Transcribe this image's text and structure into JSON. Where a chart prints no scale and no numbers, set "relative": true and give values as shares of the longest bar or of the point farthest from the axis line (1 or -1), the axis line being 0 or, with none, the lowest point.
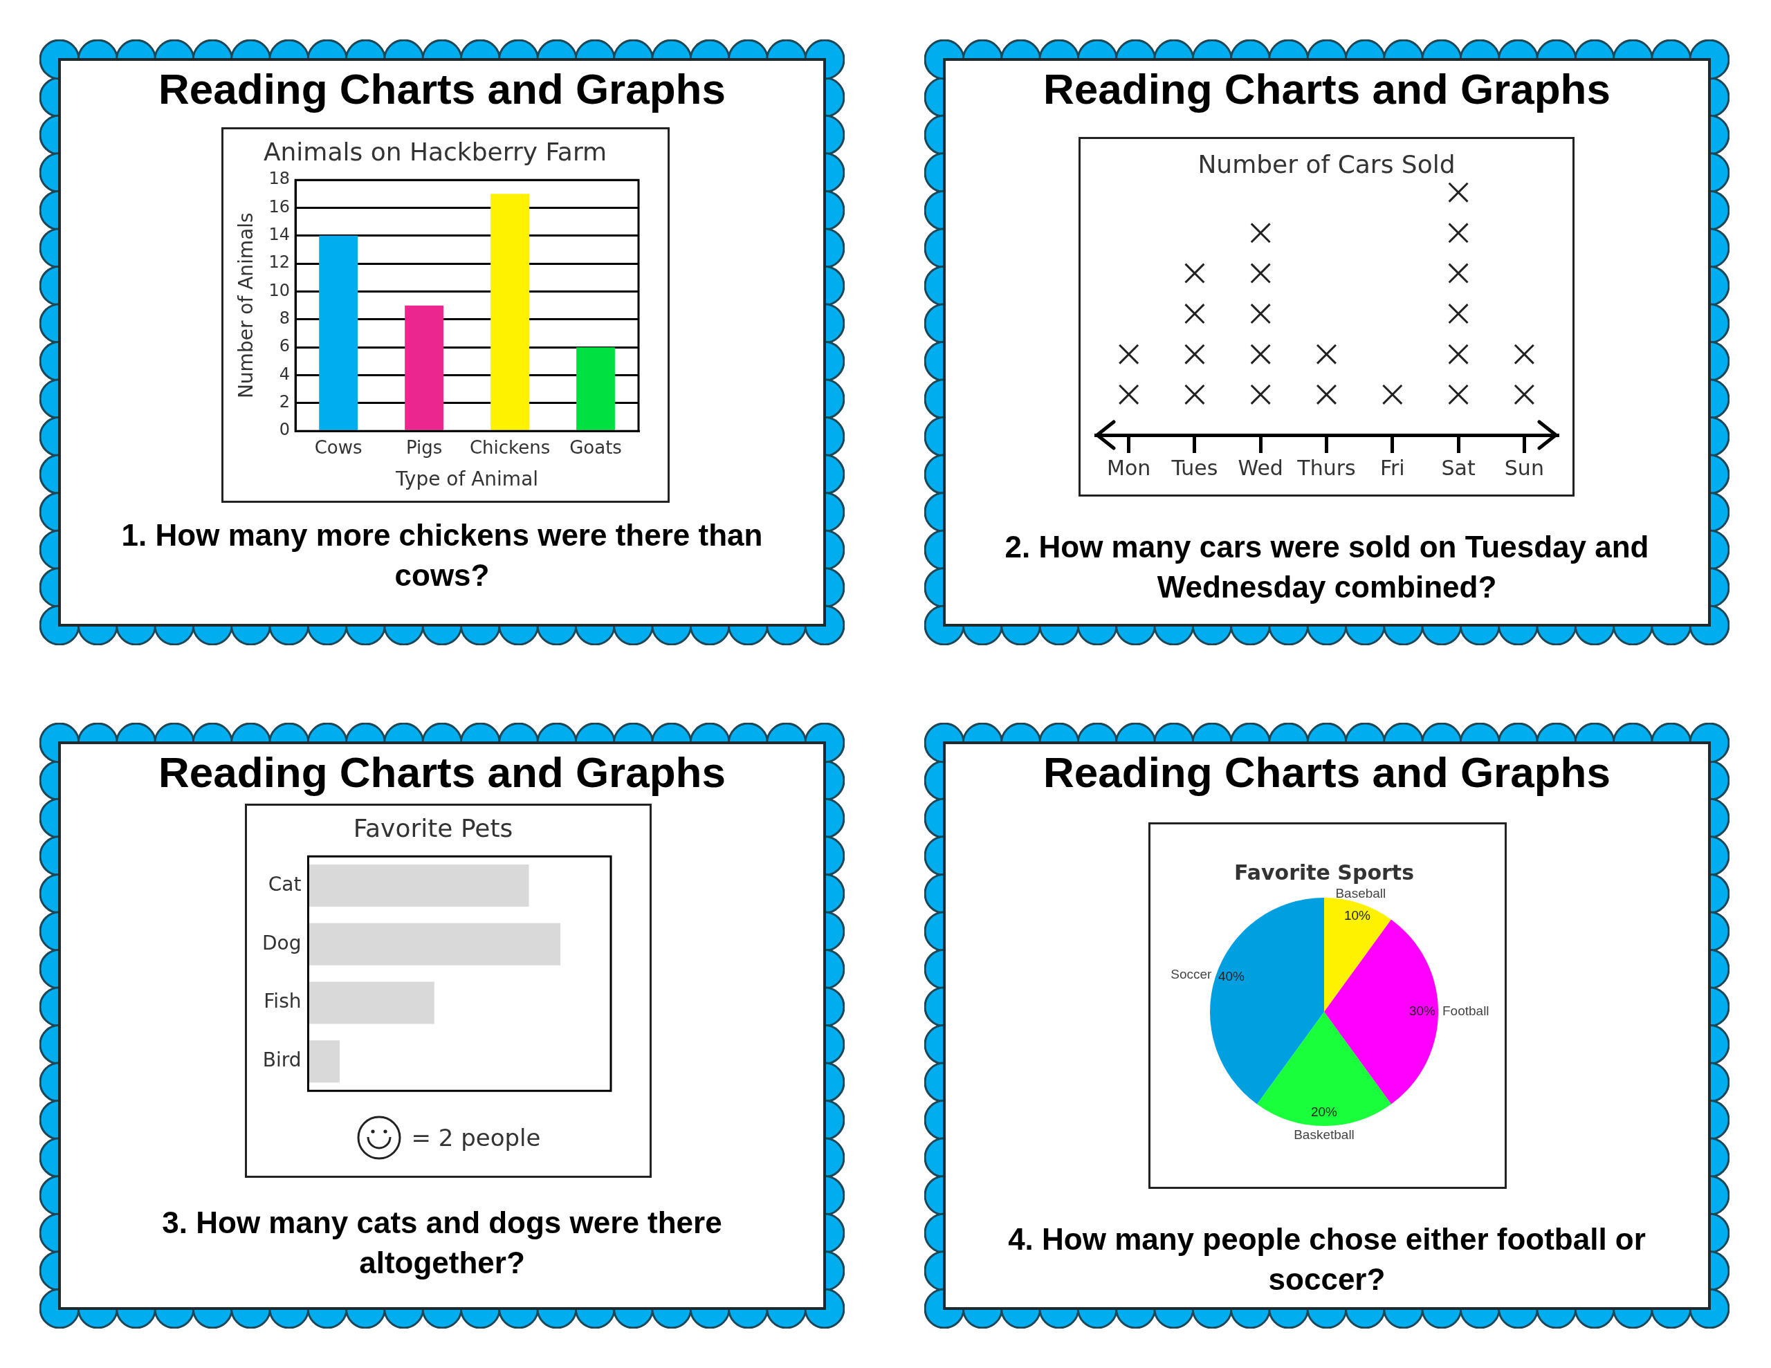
{
  "chart_data": [
    {
      "type": "bar",
      "title": "Animals on Hackberry Farm",
      "xlabel": "Type of Animal",
      "ylabel": "Number of Animals",
      "categories": [
        "Cows",
        "Pigs",
        "Chickens",
        "Goats"
      ],
      "values": [
        14,
        9,
        17,
        6
      ],
      "colors": [
        "#00aeef",
        "#ec268f",
        "#fff200",
        "#00e040"
      ],
      "ylim": [
        0,
        18
      ],
      "yticks": [
        0,
        2,
        4,
        6,
        8,
        10,
        12,
        14,
        16,
        18
      ],
      "grid": "y",
      "annotations": [
        "Reading Charts and Graphs",
        "1. How many more chickens were there than cows?"
      ]
    },
    {
      "type": "scatter",
      "title": "Number of Cars Sold",
      "categories": [
        "Mon",
        "Tues",
        "Wed",
        "Thurs",
        "Fri",
        "Sat",
        "Sun"
      ],
      "relative": true,
      "marker": "cross",
      "series": [
        {
          "color": "#222222",
          "x": [
            "Mon",
            "Mon",
            "Tues",
            "Tues",
            "Tues",
            "Tues",
            "Wed",
            "Wed",
            "Wed",
            "Wed",
            "Wed",
            "Thurs",
            "Thurs",
            "Fri",
            "Sat",
            "Sat",
            "Sat",
            "Sat",
            "Sat",
            "Sat",
            "Sun",
            "Sun"
          ],
          "values": [
            0.167,
            0.333,
            0.167,
            0.333,
            0.5,
            0.667,
            0.167,
            0.333,
            0.5,
            0.667,
            0.833,
            0.167,
            0.333,
            0.167,
            0.167,
            0.333,
            0.5,
            0.667,
            0.833,
            1,
            0.167,
            0.333
          ]
        }
      ],
      "annotations": [
        "Reading Charts and Graphs",
        "2. How many cars were sold on Tuesday and Wednesday combined?"
      ]
    },
    {
      "type": "bar",
      "orientation": "horizontal",
      "title": "Favorite Pets",
      "categories": [
        "Cat",
        "Dog",
        "Fish",
        "Bird"
      ],
      "values": [
        0.875,
        1,
        0.5,
        0.125
      ],
      "color": "#d9d9d9",
      "relative": true,
      "annotations": [
        "Reading Charts and Graphs",
        "= 2 people",
        "3. How many cats and dogs were there altogether?"
      ]
    },
    {
      "type": "pie",
      "title": "Favorite Sports",
      "categories": [
        "Baseball",
        "Football",
        "Basketball",
        "Soccer"
      ],
      "values": [
        10,
        30,
        20,
        40
      ],
      "colors": [
        "#fff200",
        "#ff00ff",
        "#19ff3c",
        "#00a0e0"
      ],
      "value_labels": [
        "10%",
        "30%",
        "20%",
        "40%"
      ],
      "annotations": [
        "Reading Charts and Graphs",
        "4. How many people chose either football or soccer?"
      ]
    }
  ]
}
